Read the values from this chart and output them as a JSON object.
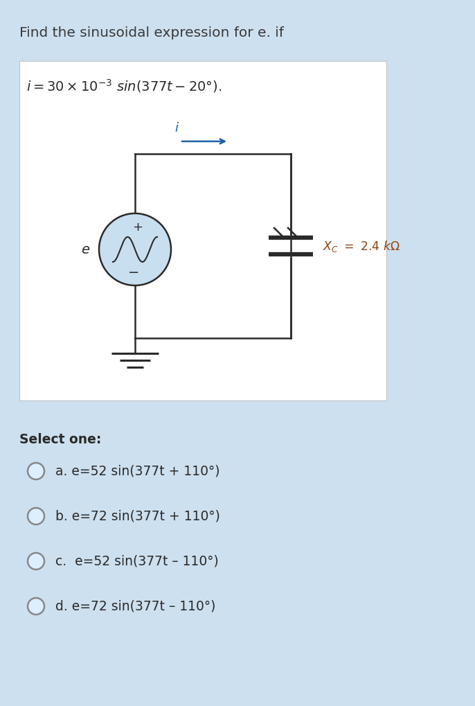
{
  "bg_color": "#cde0ef",
  "white_box_color": "#ffffff",
  "title": "Find the sinusoidal expression for e. if",
  "title_color": "#3a3a3a",
  "title_fontsize": 14.5,
  "circuit_line_color": "#2a2a2a",
  "arrow_color": "#1a5fa8",
  "source_fill": "#c8dff0",
  "xc_color": "#8B4513",
  "current_label": "i",
  "e_label": "e",
  "plus_label": "+",
  "minus_label": "−",
  "select_text": "Select one:",
  "select_fontsize": 13.5,
  "options": [
    "a. e=52 sin(377t + 110°)",
    "b. e=72 sin(377t + 110°)",
    "c.  e=52 sin(377t – 110°)",
    "d. e=72 sin(377t – 110°)"
  ],
  "option_fontsize": 13.5,
  "option_color": "#2a2a2a",
  "text_color": "#2a2a2a",
  "radio_edge_color": "#888888",
  "radio_face_color": "#ddeeff"
}
